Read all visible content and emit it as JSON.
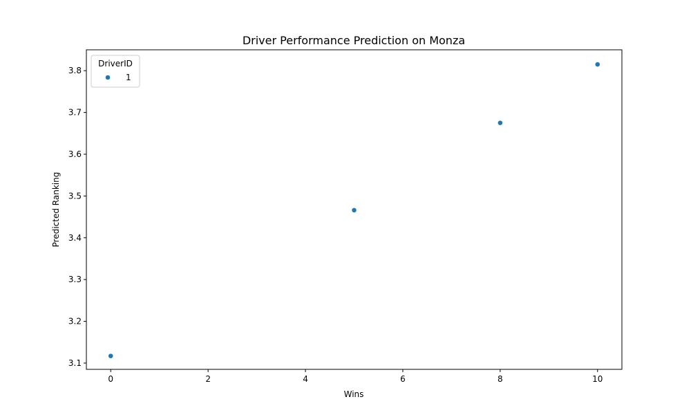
{
  "chart_data": {
    "type": "scatter",
    "title": "Driver Performance Prediction on Monza",
    "xlabel": "Wins",
    "ylabel": "Predicted Ranking",
    "xlim": [
      -0.5,
      10.5
    ],
    "ylim": [
      3.085,
      3.85
    ],
    "xticks": [
      0,
      2,
      4,
      6,
      8,
      10
    ],
    "yticks": [
      3.1,
      3.2,
      3.3,
      3.4,
      3.5,
      3.6,
      3.7,
      3.8
    ],
    "grid": false,
    "legend": {
      "title": "DriverID",
      "placement": "top-left",
      "entries": [
        "1"
      ]
    },
    "series": [
      {
        "name": "1",
        "color": "#1f77b4",
        "points": [
          {
            "x": 0,
            "y": 3.117
          },
          {
            "x": 5,
            "y": 3.466
          },
          {
            "x": 8,
            "y": 3.675
          },
          {
            "x": 10,
            "y": 3.815
          }
        ]
      }
    ]
  }
}
